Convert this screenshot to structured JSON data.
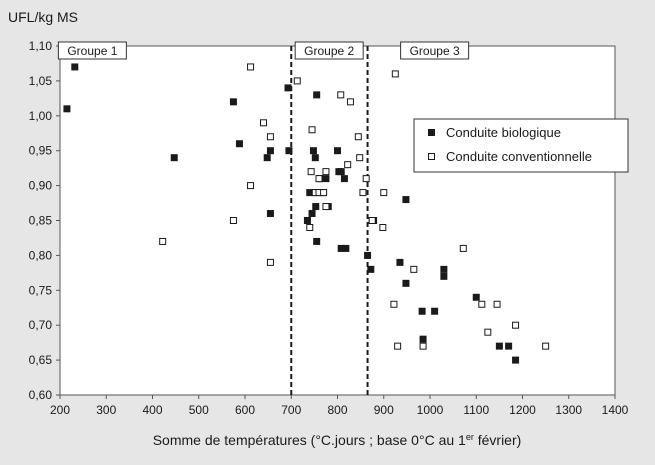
{
  "chart_data": {
    "type": "scatter",
    "ylabel": "UFL/kg MS",
    "xlabel_pre": "Somme de températures (°C.jours ; base 0°C au 1",
    "xlabel_sup": "er",
    "xlabel_post": " février)",
    "xlim": [
      200,
      1400
    ],
    "ylim": [
      0.6,
      1.1
    ],
    "x_ticks": [
      "200",
      "300",
      "400",
      "500",
      "600",
      "700",
      "800",
      "900",
      "1000",
      "1100",
      "1200",
      "1300",
      "1400"
    ],
    "y_ticks": [
      "0,60",
      "0,65",
      "0,70",
      "0,75",
      "0,80",
      "0,85",
      "0,90",
      "0,95",
      "1,00",
      "1,05",
      "1,10"
    ],
    "grid": false,
    "legend_position": "right",
    "group_dividers": [
      700,
      865
    ],
    "groups": [
      {
        "label": "Groupe 1",
        "x": 270
      },
      {
        "label": "Groupe 2",
        "x": 782
      },
      {
        "label": "Groupe 3",
        "x": 1010
      }
    ],
    "series": [
      {
        "name": "Conduite biologique",
        "marker": "filled-square",
        "color": "#1a1a1a",
        "points": [
          [
            215,
            1.01
          ],
          [
            232,
            1.07
          ],
          [
            447,
            0.94
          ],
          [
            575,
            1.02
          ],
          [
            588,
            0.96
          ],
          [
            648,
            0.94
          ],
          [
            655,
            0.95
          ],
          [
            655,
            0.86
          ],
          [
            693,
            1.04
          ],
          [
            695,
            0.95
          ],
          [
            735,
            0.85
          ],
          [
            740,
            0.89
          ],
          [
            745,
            0.86
          ],
          [
            748,
            0.95
          ],
          [
            752,
            0.89
          ],
          [
            752,
            0.94
          ],
          [
            753,
            0.87
          ],
          [
            755,
            0.82
          ],
          [
            755,
            1.03
          ],
          [
            760,
            0.91
          ],
          [
            768,
            0.89
          ],
          [
            775,
            0.91
          ],
          [
            780,
            0.87
          ],
          [
            800,
            0.95
          ],
          [
            803,
            0.92
          ],
          [
            808,
            0.92
          ],
          [
            808,
            0.81
          ],
          [
            815,
            0.91
          ],
          [
            818,
            0.81
          ],
          [
            865,
            0.8
          ],
          [
            875,
            0.85
          ],
          [
            878,
            0.85
          ],
          [
            872,
            0.78
          ],
          [
            935,
            0.79
          ],
          [
            948,
            0.88
          ],
          [
            948,
            0.76
          ],
          [
            983,
            0.72
          ],
          [
            985,
            0.68
          ],
          [
            1010,
            0.72
          ],
          [
            1030,
            0.78
          ],
          [
            1030,
            0.77
          ],
          [
            1100,
            0.74
          ],
          [
            1150,
            0.67
          ],
          [
            1170,
            0.67
          ],
          [
            1185,
            0.65
          ]
        ]
      },
      {
        "name": "Conduite conventionnelle",
        "marker": "open-square",
        "color": "#ffffff",
        "points": [
          [
            422,
            0.82
          ],
          [
            575,
            0.85
          ],
          [
            612,
            1.07
          ],
          [
            612,
            0.9
          ],
          [
            640,
            0.99
          ],
          [
            655,
            0.97
          ],
          [
            655,
            0.79
          ],
          [
            713,
            1.05
          ],
          [
            745,
            0.98
          ],
          [
            743,
            0.92
          ],
          [
            740,
            0.84
          ],
          [
            752,
            0.89
          ],
          [
            760,
            0.89
          ],
          [
            760,
            0.91
          ],
          [
            770,
            0.89
          ],
          [
            775,
            0.92
          ],
          [
            775,
            0.87
          ],
          [
            807,
            1.03
          ],
          [
            822,
            0.93
          ],
          [
            828,
            1.02
          ],
          [
            845,
            0.97
          ],
          [
            848,
            0.94
          ],
          [
            855,
            0.89
          ],
          [
            862,
            0.91
          ],
          [
            875,
            0.85
          ],
          [
            898,
            0.84
          ],
          [
            900,
            0.89
          ],
          [
            922,
            0.73
          ],
          [
            925,
            1.06
          ],
          [
            930,
            0.67
          ],
          [
            965,
            0.78
          ],
          [
            985,
            0.67
          ],
          [
            1072,
            0.81
          ],
          [
            1112,
            0.73
          ],
          [
            1125,
            0.69
          ],
          [
            1145,
            0.73
          ],
          [
            1185,
            0.7
          ],
          [
            1250,
            0.67
          ]
        ]
      }
    ]
  }
}
